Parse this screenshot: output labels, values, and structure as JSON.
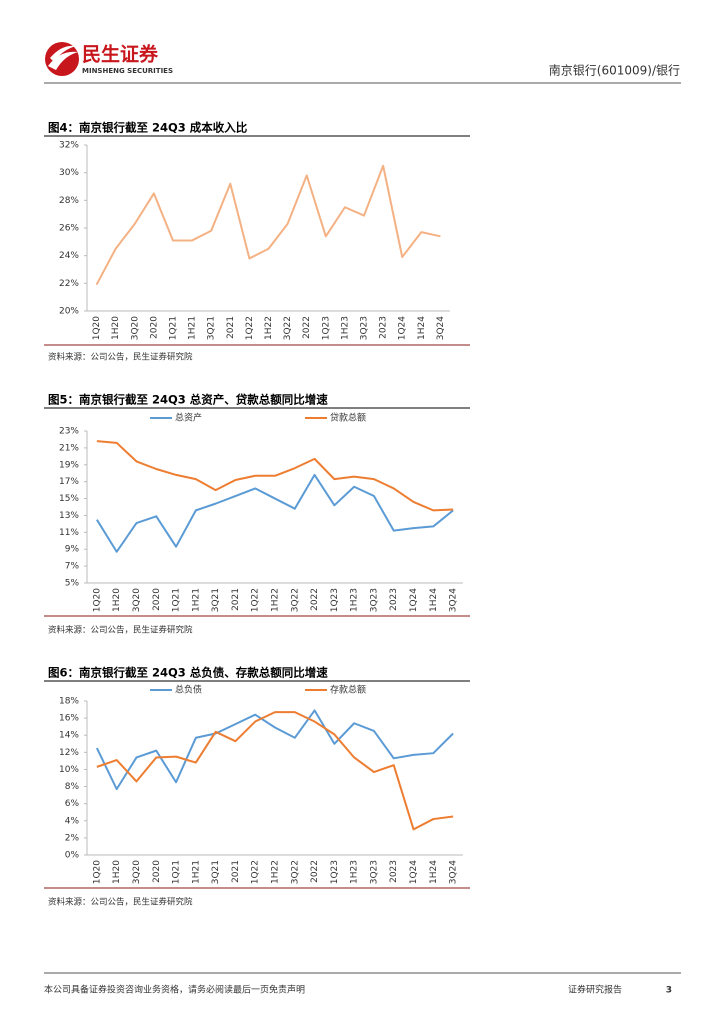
{
  "header": {
    "brand": "民生证券",
    "brand_en": "MINSHENG SECURITIES",
    "report": "南京银行(601009)/银行"
  },
  "chart_data": [
    {
      "type": "line",
      "title": "图4：南京银行截至 24Q3 成本收入比",
      "categories": [
        "1Q20",
        "1H20",
        "3Q20",
        "2020",
        "1Q21",
        "1H21",
        "3Q21",
        "2021",
        "1Q22",
        "1H22",
        "3Q22",
        "2022",
        "1Q23",
        "1H23",
        "3Q23",
        "2023",
        "1Q24",
        "1H24",
        "3Q24"
      ],
      "values": [
        21.9,
        24.5,
        26.3,
        28.5,
        25.1,
        25.1,
        25.8,
        29.2,
        23.8,
        24.5,
        26.3,
        29.8,
        25.4,
        27.5,
        26.9,
        30.5,
        23.9,
        25.7,
        25.4
      ],
      "color": "#f4b183",
      "grid": false,
      "ylim": [
        20,
        32
      ],
      "yticks": [
        {
          "value": 20,
          "label": "20%"
        },
        {
          "value": 22,
          "label": "22%"
        },
        {
          "value": 24,
          "label": "24%"
        },
        {
          "value": 26,
          "label": "26%"
        },
        {
          "value": 28,
          "label": "28%"
        },
        {
          "value": 30,
          "label": "30%"
        },
        {
          "value": 32,
          "label": "32%"
        }
      ],
      "source": "资料来源：公司公告，民生证券研究院"
    },
    {
      "type": "line",
      "title": "图5：南京银行截至 24Q3 总资产、贷款总额同比增速",
      "categories": [
        "1Q20",
        "1H20",
        "3Q20",
        "2020",
        "1Q21",
        "1H21",
        "3Q21",
        "2021",
        "1Q22",
        "1H22",
        "3Q22",
        "2022",
        "1Q23",
        "1H23",
        "3Q23",
        "2023",
        "1Q24",
        "1H24",
        "3Q24"
      ],
      "series": [
        {
          "name": "总资产",
          "color": "#5b9bd5",
          "values": [
            12.5,
            8.7,
            12.1,
            12.9,
            9.3,
            13.6,
            14.4,
            15.3,
            16.2,
            15.0,
            13.8,
            17.8,
            14.2,
            16.4,
            15.3,
            11.2,
            11.5,
            11.7,
            13.6
          ]
        },
        {
          "name": "贷款总额",
          "color": "#ed7d31",
          "values": [
            21.8,
            21.6,
            19.4,
            18.5,
            17.8,
            17.3,
            16.0,
            17.2,
            17.7,
            17.7,
            18.6,
            19.7,
            17.3,
            17.6,
            17.3,
            16.2,
            14.6,
            13.6,
            13.7
          ]
        }
      ],
      "grid": false,
      "ylim": [
        5,
        23
      ],
      "yticks": [
        {
          "value": 5,
          "label": "5%"
        },
        {
          "value": 7,
          "label": "7%"
        },
        {
          "value": 9,
          "label": "9%"
        },
        {
          "value": 11,
          "label": "11%"
        },
        {
          "value": 13,
          "label": "13%"
        },
        {
          "value": 15,
          "label": "15%"
        },
        {
          "value": 17,
          "label": "17%"
        },
        {
          "value": 19,
          "label": "19%"
        },
        {
          "value": 21,
          "label": "21%"
        },
        {
          "value": 23,
          "label": "23%"
        }
      ],
      "source": "资料来源：公司公告，民生证券研究院"
    },
    {
      "type": "line",
      "title": "图6：南京银行截至 24Q3 总负债、存款总额同比增速",
      "categories": [
        "1Q20",
        "1H20",
        "3Q20",
        "2020",
        "1Q21",
        "1H21",
        "3Q21",
        "2021",
        "1Q22",
        "1H22",
        "3Q22",
        "2022",
        "1Q23",
        "1H23",
        "3Q23",
        "2023",
        "1Q24",
        "1H24",
        "3Q24"
      ],
      "series": [
        {
          "name": "总负债",
          "color": "#5b9bd5",
          "values": [
            12.5,
            7.7,
            11.4,
            12.2,
            8.5,
            13.7,
            14.2,
            15.3,
            16.4,
            14.9,
            13.7,
            16.9,
            13.0,
            15.4,
            14.5,
            11.3,
            11.7,
            11.9,
            14.2
          ]
        },
        {
          "name": "存款总额",
          "color": "#ed7d31",
          "values": [
            10.3,
            11.1,
            8.6,
            11.4,
            11.5,
            10.8,
            14.4,
            13.3,
            15.6,
            16.7,
            16.7,
            15.6,
            14.1,
            11.4,
            9.7,
            10.5,
            3.0,
            4.2,
            4.5
          ]
        }
      ],
      "grid": false,
      "ylim": [
        0,
        18
      ],
      "yticks": [
        {
          "value": 0,
          "label": "0%"
        },
        {
          "value": 2,
          "label": "2%"
        },
        {
          "value": 4,
          "label": "4%"
        },
        {
          "value": 6,
          "label": "6%"
        },
        {
          "value": 8,
          "label": "8%"
        },
        {
          "value": 10,
          "label": "10%"
        },
        {
          "value": 12,
          "label": "12%"
        },
        {
          "value": 14,
          "label": "14%"
        },
        {
          "value": 16,
          "label": "16%"
        },
        {
          "value": 18,
          "label": "18%"
        }
      ],
      "source": "资料来源：公司公告，民生证券研究院"
    }
  ],
  "footer": {
    "disclaimer": "本公司具备证券投资咨询业务资格，请务必阅读最后一页免责声明",
    "label": "证券研究报告",
    "page": 3
  }
}
